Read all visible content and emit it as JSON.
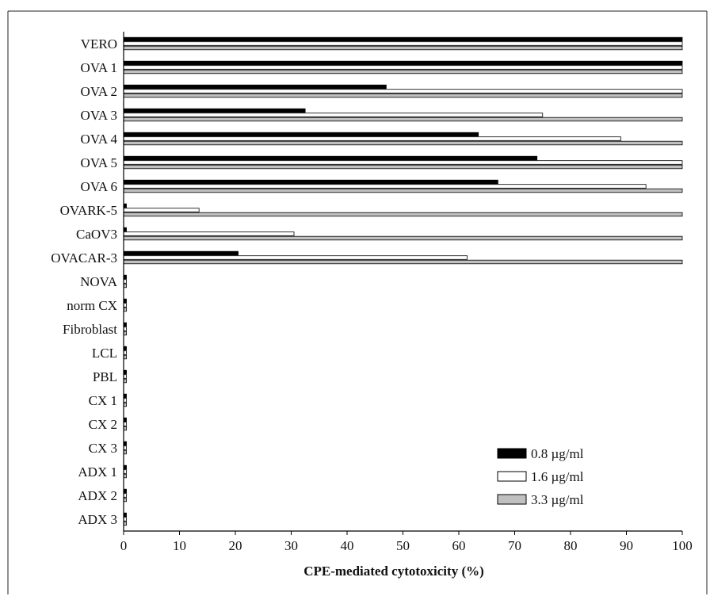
{
  "chart_data": {
    "type": "bar",
    "orientation": "horizontal",
    "title": "",
    "xlabel": "CPE-mediated cytotoxicity (%)",
    "ylabel": "",
    "xlim": [
      0,
      100
    ],
    "xticks": [
      0,
      10,
      20,
      30,
      40,
      50,
      60,
      70,
      80,
      90,
      100
    ],
    "grid": false,
    "legend_position": "bottom-right",
    "categories": [
      "VERO",
      "OVA 1",
      "OVA 2",
      "OVA 3",
      "OVA 4",
      "OVA 5",
      "OVA 6",
      "OVARK-5",
      "CaOV3",
      "OVACAR-3",
      "NOVA",
      "norm CX",
      "Fibroblast",
      "LCL",
      "PBL",
      "CX 1",
      "CX 2",
      "CX 3",
      "ADX 1",
      "ADX 2",
      "ADX 3"
    ],
    "series": [
      {
        "name": "0.8 µg/ml",
        "fill": "#000000",
        "values": [
          100,
          100,
          47,
          32.5,
          63.5,
          74,
          67,
          0.5,
          0.5,
          20.5,
          0.5,
          0.5,
          0.5,
          0.5,
          0.5,
          0.5,
          0.5,
          0.5,
          0.5,
          0.5,
          0.5
        ]
      },
      {
        "name": "1.6 µg/ml",
        "fill": "#ffffff",
        "values": [
          100,
          100,
          100,
          75,
          89,
          100,
          93.5,
          13.5,
          30.5,
          61.5,
          0.5,
          0.5,
          0.5,
          0.5,
          0.5,
          0.5,
          0.5,
          0.5,
          0.5,
          0.5,
          0.5
        ]
      },
      {
        "name": "3.3 µg/ml",
        "fill": "#c0c0c0",
        "values": [
          100,
          100,
          100,
          100,
          100,
          100,
          100,
          100,
          100,
          100,
          0.5,
          0.5,
          0.5,
          0.5,
          0.5,
          0.5,
          0.5,
          0.5,
          0.5,
          0.5,
          0.5
        ]
      }
    ]
  }
}
